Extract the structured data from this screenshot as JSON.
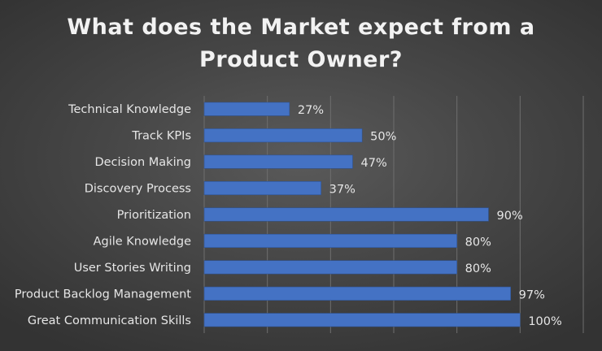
{
  "chart_data": {
    "type": "bar",
    "orientation": "horizontal",
    "title_lines": [
      "What does the Market expect from a",
      "Product Owner?"
    ],
    "categories": [
      "Technical Knowledge",
      "Track KPIs",
      "Decision Making",
      "Discovery Process",
      "Prioritization",
      "Agile Knowledge",
      "User Stories Writing",
      "Product Backlog Management",
      "Great Communication Skills"
    ],
    "values": [
      27,
      50,
      47,
      37,
      90,
      80,
      80,
      97,
      100
    ],
    "value_labels": [
      "27%",
      "50%",
      "47%",
      "37%",
      "90%",
      "80%",
      "80%",
      "97%",
      "100%"
    ],
    "xlim": [
      0,
      120
    ],
    "grid": true,
    "bar_color": "#4472c4",
    "background_color": "#474747",
    "text_color": "#e6e6e6"
  }
}
